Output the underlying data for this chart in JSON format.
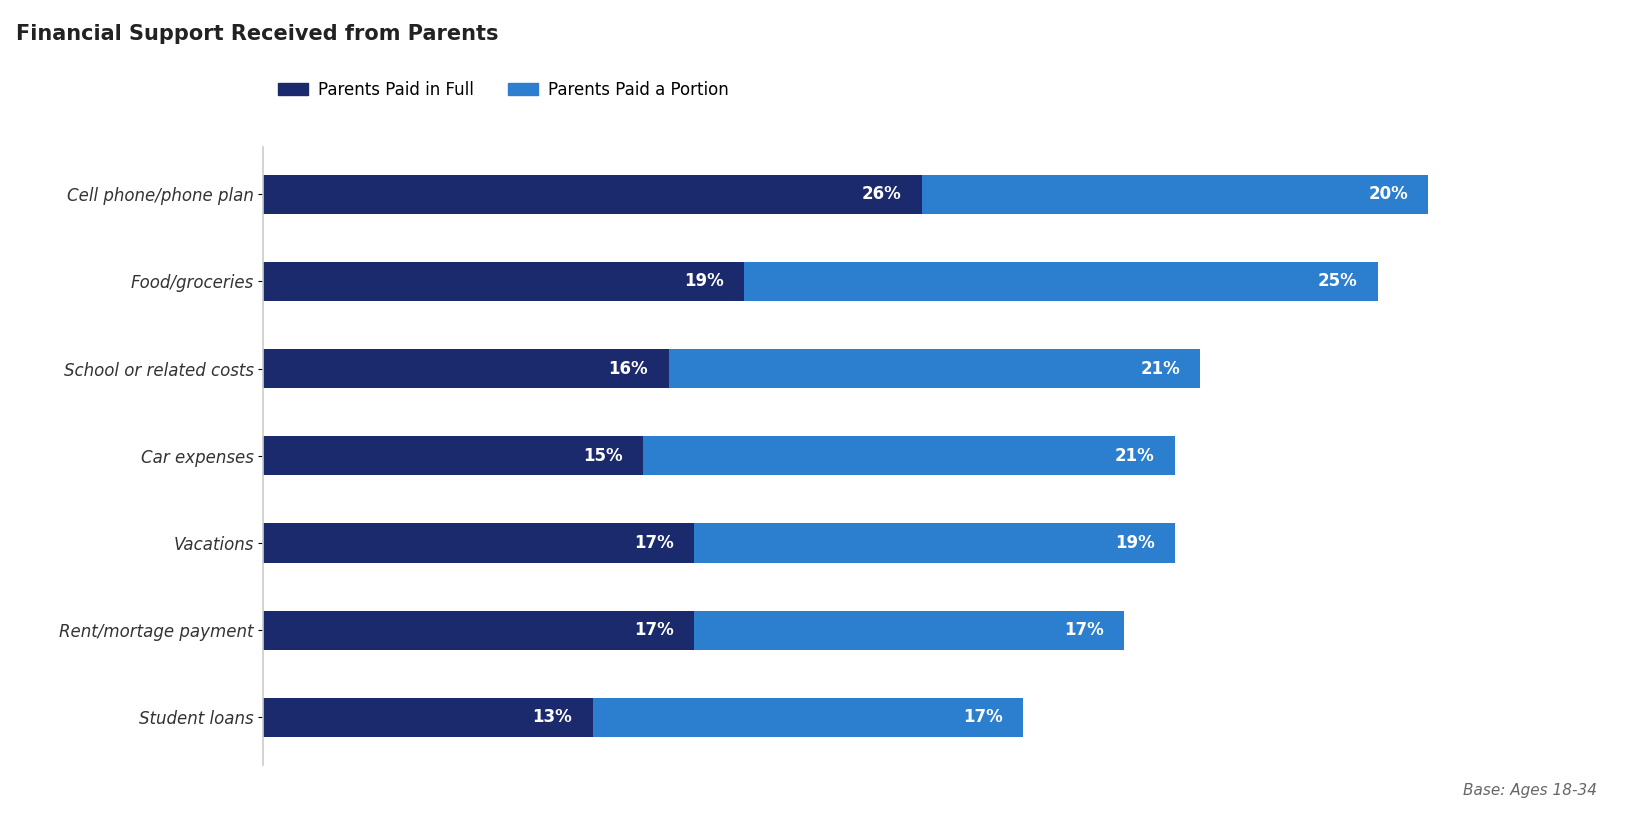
{
  "title": "Financial Support Received from Parents",
  "categories": [
    "Cell phone/phone plan",
    "Food/groceries",
    "School or related costs",
    "Car expenses",
    "Vacations",
    "Rent/mortage payment",
    "Student loans"
  ],
  "paid_in_full": [
    26,
    19,
    16,
    15,
    17,
    17,
    13
  ],
  "paid_portion": [
    20,
    25,
    21,
    21,
    19,
    17,
    17
  ],
  "color_full": "#1a2a6c",
  "color_portion": "#2b7fce",
  "legend_full": "Parents Paid in Full",
  "legend_portion": "Parents Paid a Portion",
  "base_note": "Base: Ages 18-34",
  "background_color": "#ffffff",
  "bar_height": 0.45,
  "title_fontsize": 15,
  "tick_fontsize": 12,
  "value_fontsize": 12,
  "legend_fontsize": 12
}
